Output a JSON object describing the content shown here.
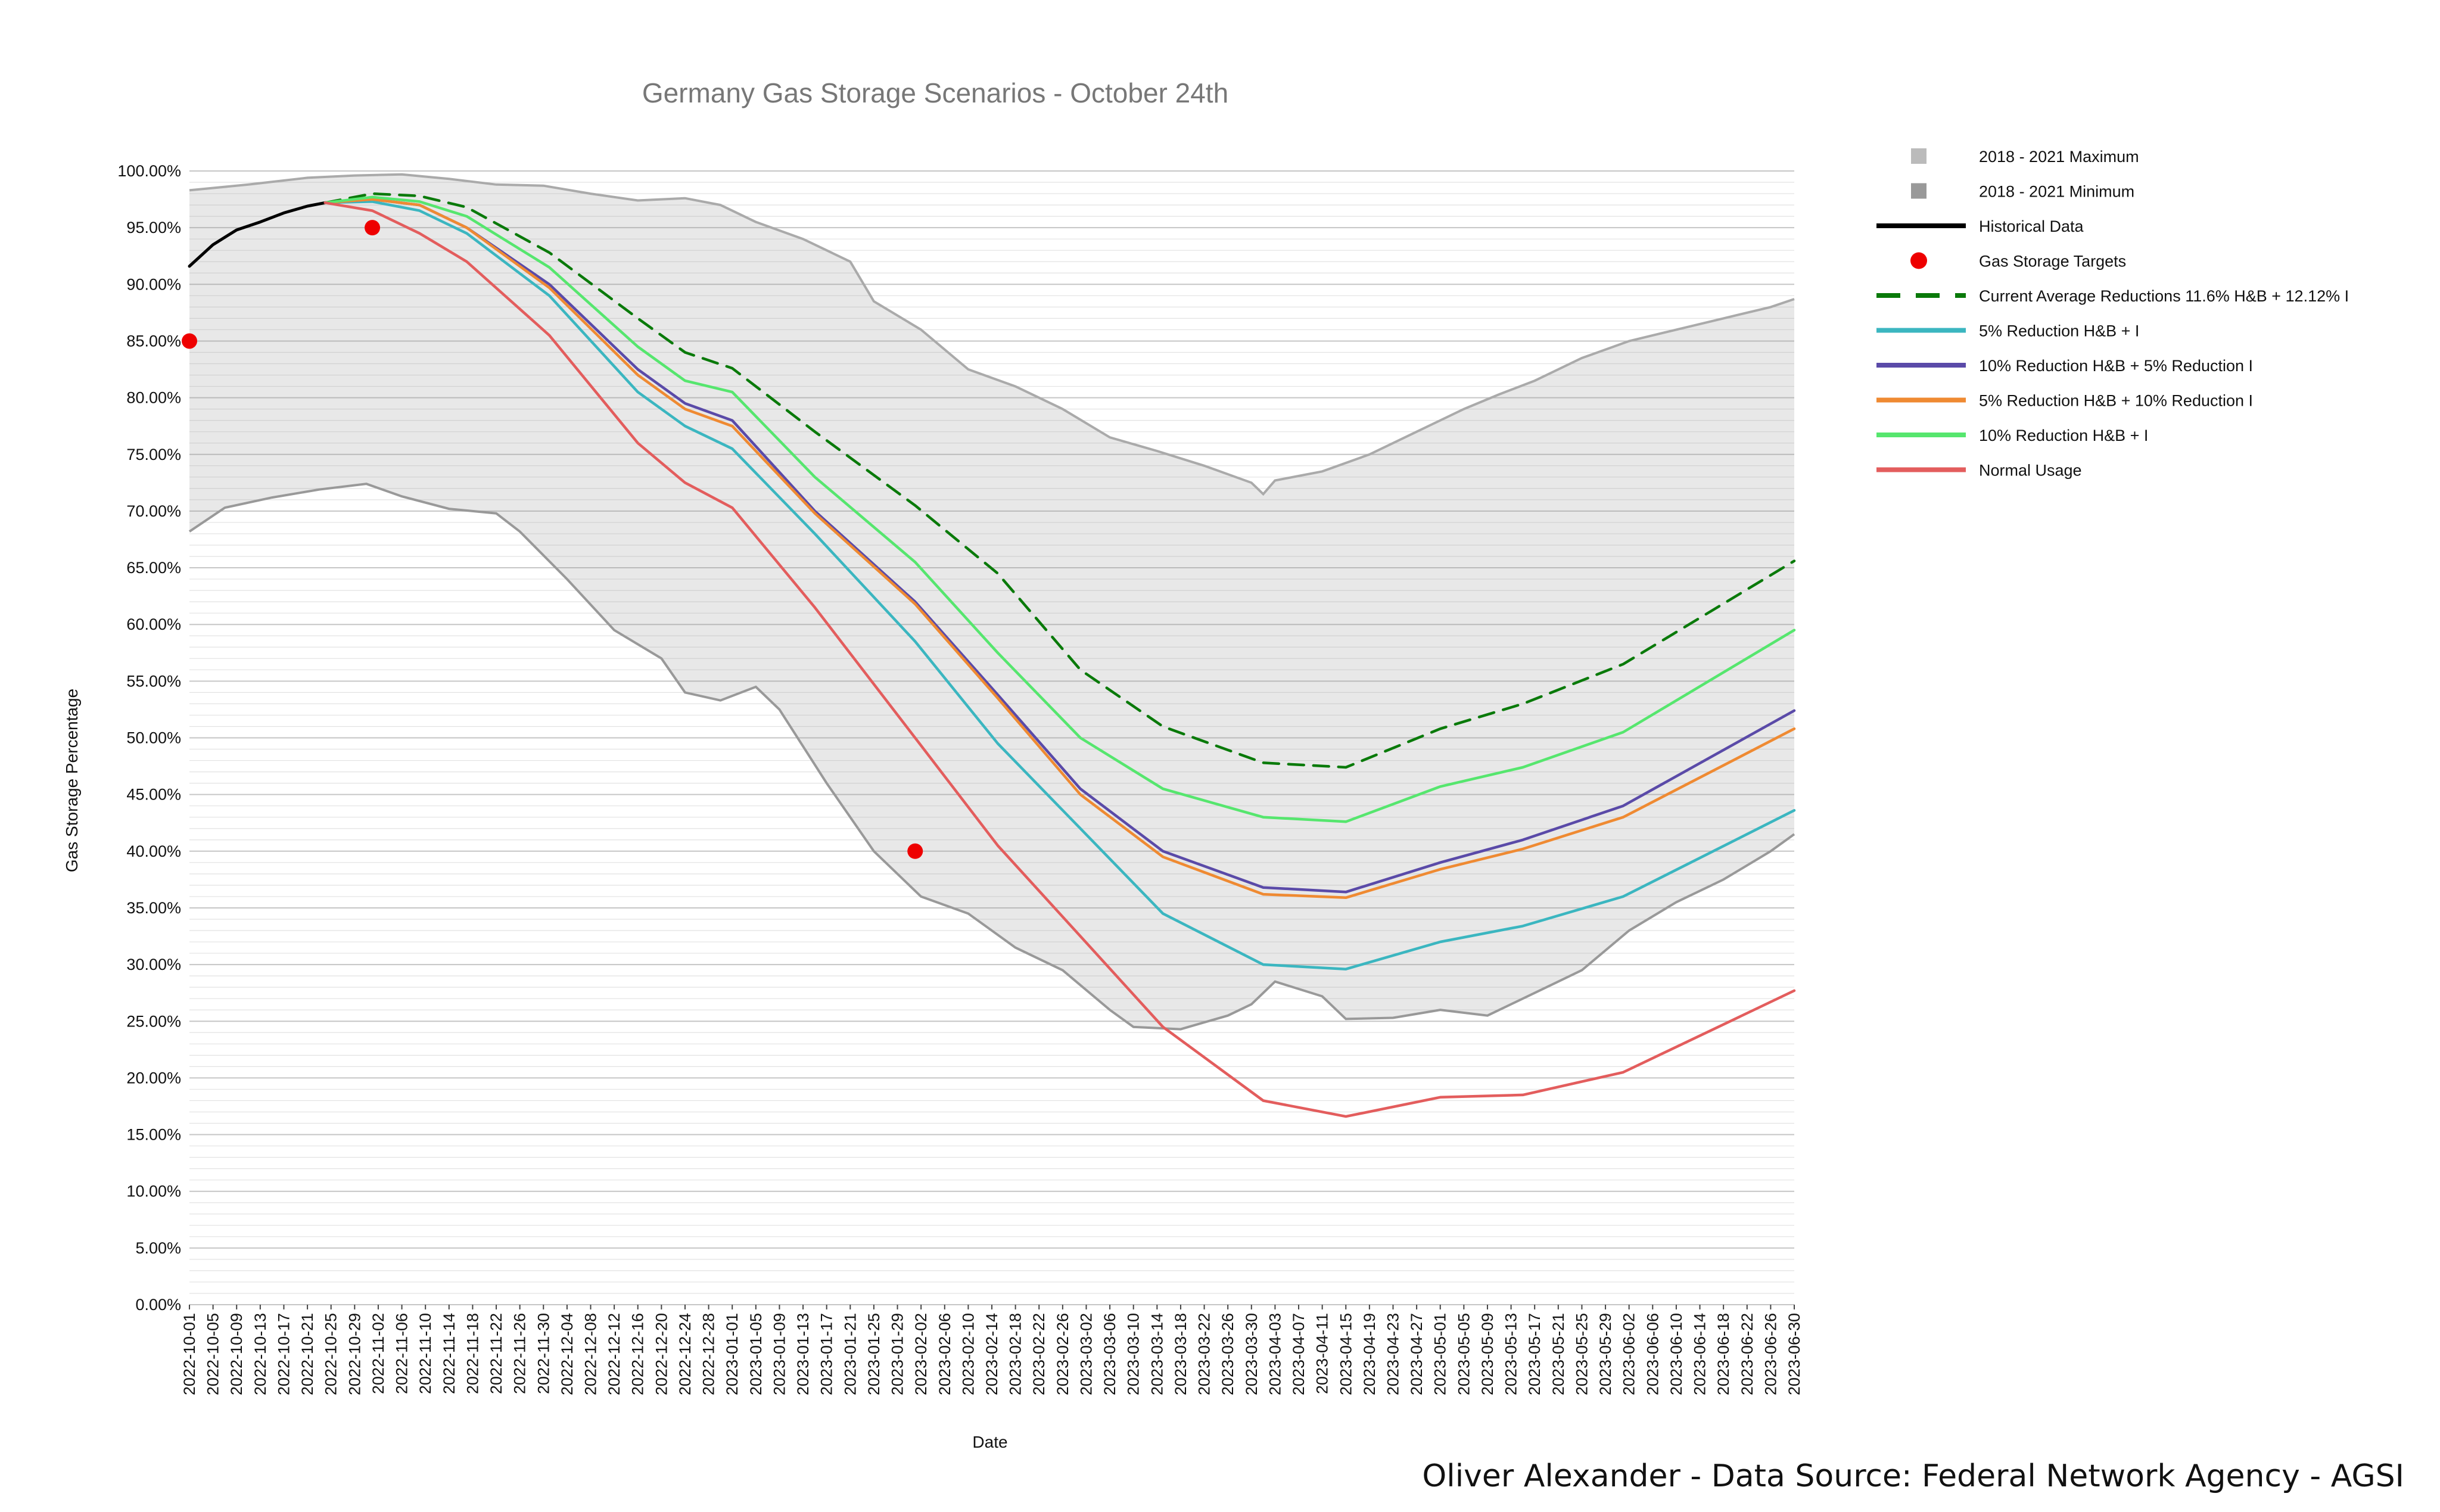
{
  "chart_data": {
    "type": "line",
    "title": "Germany Gas Storage Scenarios - October 24th",
    "xlabel": "Date",
    "ylabel": "Gas Storage Percentage",
    "ylim": [
      0,
      100
    ],
    "x_range": [
      "2022-10-01",
      "2023-06-30"
    ],
    "x_tick_start": "2022-10-01",
    "x_tick_step_days": 4,
    "y_ticks": [
      "0.00%",
      "5.00%",
      "10.00%",
      "15.00%",
      "20.00%",
      "25.00%",
      "30.00%",
      "35.00%",
      "40.00%",
      "45.00%",
      "50.00%",
      "55.00%",
      "60.00%",
      "65.00%",
      "70.00%",
      "75.00%",
      "80.00%",
      "85.00%",
      "90.00%",
      "95.00%",
      "100.00%"
    ],
    "grid": true,
    "legend_position": "right",
    "band": {
      "max_name": "2018 - 2021 Maximum",
      "min_name": "2018 - 2021 Minimum",
      "max": [
        [
          "2022-10-01",
          98.3
        ],
        [
          "2022-10-11",
          98.8
        ],
        [
          "2022-10-21",
          99.4
        ],
        [
          "2022-10-29",
          99.6
        ],
        [
          "2022-11-06",
          99.7
        ],
        [
          "2022-11-14",
          99.3
        ],
        [
          "2022-11-22",
          98.8
        ],
        [
          "2022-11-30",
          98.7
        ],
        [
          "2022-12-08",
          98.0
        ],
        [
          "2022-12-16",
          97.4
        ],
        [
          "2022-12-24",
          97.6
        ],
        [
          "2022-12-30",
          97.0
        ],
        [
          "2023-01-05",
          95.5
        ],
        [
          "2023-01-13",
          94.0
        ],
        [
          "2023-01-21",
          92.0
        ],
        [
          "2023-01-25",
          88.5
        ],
        [
          "2023-02-02",
          86.0
        ],
        [
          "2023-02-10",
          82.5
        ],
        [
          "2023-02-18",
          81.0
        ],
        [
          "2023-02-26",
          79.0
        ],
        [
          "2023-03-06",
          76.5
        ],
        [
          "2023-03-14",
          75.3
        ],
        [
          "2023-03-22",
          74.0
        ],
        [
          "2023-03-30",
          72.5
        ],
        [
          "2023-04-01",
          71.5
        ],
        [
          "2023-04-03",
          72.7
        ],
        [
          "2023-04-11",
          73.5
        ],
        [
          "2023-04-19",
          75.0
        ],
        [
          "2023-04-27",
          77.0
        ],
        [
          "2023-05-05",
          79.0
        ],
        [
          "2023-05-11",
          80.3
        ],
        [
          "2023-05-17",
          81.5
        ],
        [
          "2023-05-25",
          83.5
        ],
        [
          "2023-06-02",
          85.0
        ],
        [
          "2023-06-10",
          86.0
        ],
        [
          "2023-06-18",
          87.0
        ],
        [
          "2023-06-26",
          88.0
        ],
        [
          "2023-06-30",
          88.7
        ]
      ],
      "min": [
        [
          "2022-10-01",
          68.2
        ],
        [
          "2022-10-07",
          70.3
        ],
        [
          "2022-10-15",
          71.2
        ],
        [
          "2022-10-23",
          71.9
        ],
        [
          "2022-10-31",
          72.4
        ],
        [
          "2022-11-06",
          71.3
        ],
        [
          "2022-11-14",
          70.2
        ],
        [
          "2022-11-22",
          69.8
        ],
        [
          "2022-11-26",
          68.2
        ],
        [
          "2022-12-04",
          64.0
        ],
        [
          "2022-12-12",
          59.5
        ],
        [
          "2022-12-20",
          57.0
        ],
        [
          "2022-12-24",
          54.0
        ],
        [
          "2022-12-30",
          53.3
        ],
        [
          "2023-01-05",
          54.5
        ],
        [
          "2023-01-09",
          52.5
        ],
        [
          "2023-01-17",
          46.0
        ],
        [
          "2023-01-25",
          40.0
        ],
        [
          "2023-02-02",
          36.0
        ],
        [
          "2023-02-10",
          34.5
        ],
        [
          "2023-02-18",
          31.5
        ],
        [
          "2023-02-26",
          29.5
        ],
        [
          "2023-03-06",
          26.0
        ],
        [
          "2023-03-10",
          24.5
        ],
        [
          "2023-03-18",
          24.3
        ],
        [
          "2023-03-26",
          25.5
        ],
        [
          "2023-03-30",
          26.5
        ],
        [
          "2023-04-03",
          28.5
        ],
        [
          "2023-04-11",
          27.2
        ],
        [
          "2023-04-15",
          25.2
        ],
        [
          "2023-04-23",
          25.3
        ],
        [
          "2023-05-01",
          26.0
        ],
        [
          "2023-05-09",
          25.5
        ],
        [
          "2023-05-17",
          27.5
        ],
        [
          "2023-05-25",
          29.5
        ],
        [
          "2023-06-02",
          33.0
        ],
        [
          "2023-06-10",
          35.5
        ],
        [
          "2023-06-18",
          37.5
        ],
        [
          "2023-06-26",
          40.0
        ],
        [
          "2023-06-30",
          41.5
        ]
      ]
    },
    "series": [
      {
        "name": "Historical Data",
        "color": "#000000",
        "dash": false,
        "points": [
          [
            "2022-10-01",
            91.6
          ],
          [
            "2022-10-05",
            93.5
          ],
          [
            "2022-10-09",
            94.8
          ],
          [
            "2022-10-13",
            95.5
          ],
          [
            "2022-10-17",
            96.3
          ],
          [
            "2022-10-21",
            96.9
          ],
          [
            "2022-10-24",
            97.2
          ]
        ]
      },
      {
        "name": "Current Average Reductions 11.6% H&B + 12.12% I",
        "color": "#0a7a0a",
        "dash": true,
        "points": [
          [
            "2022-10-24",
            97.2
          ],
          [
            "2022-11-01",
            98.0
          ],
          [
            "2022-11-09",
            97.8
          ],
          [
            "2022-11-17",
            96.8
          ],
          [
            "2022-12-01",
            92.8
          ],
          [
            "2022-12-16",
            87.0
          ],
          [
            "2022-12-24",
            84.0
          ],
          [
            "2023-01-01",
            82.6
          ],
          [
            "2023-01-15",
            77.0
          ],
          [
            "2023-02-01",
            70.5
          ],
          [
            "2023-02-15",
            64.5
          ],
          [
            "2023-03-01",
            56.0
          ],
          [
            "2023-03-15",
            51.0
          ],
          [
            "2023-04-01",
            47.8
          ],
          [
            "2023-04-15",
            47.4
          ],
          [
            "2023-05-01",
            50.8
          ],
          [
            "2023-05-15",
            53.0
          ],
          [
            "2023-06-01",
            56.5
          ],
          [
            "2023-06-30",
            65.6
          ]
        ]
      },
      {
        "name": "5% Reduction H&B + I",
        "color": "#3bb6c0",
        "dash": false,
        "points": [
          [
            "2022-10-24",
            97.2
          ],
          [
            "2022-11-01",
            97.3
          ],
          [
            "2022-11-09",
            96.5
          ],
          [
            "2022-11-17",
            94.5
          ],
          [
            "2022-12-01",
            89.0
          ],
          [
            "2022-12-16",
            80.5
          ],
          [
            "2022-12-24",
            77.5
          ],
          [
            "2023-01-01",
            75.5
          ],
          [
            "2023-01-15",
            68.0
          ],
          [
            "2023-02-01",
            58.5
          ],
          [
            "2023-02-15",
            49.5
          ],
          [
            "2023-03-01",
            42.0
          ],
          [
            "2023-03-15",
            34.5
          ],
          [
            "2023-04-01",
            30.0
          ],
          [
            "2023-04-15",
            29.6
          ],
          [
            "2023-05-01",
            32.0
          ],
          [
            "2023-05-15",
            33.4
          ],
          [
            "2023-06-01",
            36.0
          ],
          [
            "2023-06-30",
            43.6
          ]
        ]
      },
      {
        "name": "10% Reduction H&B + 5% Reduction I",
        "color": "#5a4aa8",
        "dash": false,
        "points": [
          [
            "2022-10-24",
            97.2
          ],
          [
            "2022-11-01",
            97.5
          ],
          [
            "2022-11-09",
            97.0
          ],
          [
            "2022-11-17",
            95.0
          ],
          [
            "2022-12-01",
            90.0
          ],
          [
            "2022-12-16",
            82.5
          ],
          [
            "2022-12-24",
            79.5
          ],
          [
            "2023-01-01",
            78.0
          ],
          [
            "2023-01-15",
            70.0
          ],
          [
            "2023-02-01",
            62.0
          ],
          [
            "2023-02-15",
            53.8
          ],
          [
            "2023-03-01",
            45.5
          ],
          [
            "2023-03-15",
            40.0
          ],
          [
            "2023-04-01",
            36.8
          ],
          [
            "2023-04-15",
            36.4
          ],
          [
            "2023-05-01",
            39.0
          ],
          [
            "2023-05-15",
            41.0
          ],
          [
            "2023-06-01",
            44.0
          ],
          [
            "2023-06-30",
            52.4
          ]
        ]
      },
      {
        "name": "5% Reduction H&B + 10% Reduction I",
        "color": "#ef8a32",
        "dash": false,
        "points": [
          [
            "2022-10-24",
            97.2
          ],
          [
            "2022-11-01",
            97.5
          ],
          [
            "2022-11-09",
            97.0
          ],
          [
            "2022-11-17",
            95.0
          ],
          [
            "2022-12-01",
            89.7
          ],
          [
            "2022-12-16",
            82.0
          ],
          [
            "2022-12-24",
            79.0
          ],
          [
            "2023-01-01",
            77.5
          ],
          [
            "2023-01-15",
            69.8
          ],
          [
            "2023-02-01",
            61.8
          ],
          [
            "2023-02-15",
            53.5
          ],
          [
            "2023-03-01",
            45.0
          ],
          [
            "2023-03-15",
            39.5
          ],
          [
            "2023-04-01",
            36.2
          ],
          [
            "2023-04-15",
            35.9
          ],
          [
            "2023-05-01",
            38.4
          ],
          [
            "2023-05-15",
            40.2
          ],
          [
            "2023-06-01",
            43.0
          ],
          [
            "2023-06-30",
            50.8
          ]
        ]
      },
      {
        "name": "10% Reduction H&B + I",
        "color": "#56e66e",
        "dash": false,
        "points": [
          [
            "2022-10-24",
            97.2
          ],
          [
            "2022-11-01",
            97.7
          ],
          [
            "2022-11-09",
            97.3
          ],
          [
            "2022-11-17",
            96.0
          ],
          [
            "2022-12-01",
            91.5
          ],
          [
            "2022-12-16",
            84.5
          ],
          [
            "2022-12-24",
            81.5
          ],
          [
            "2023-01-01",
            80.5
          ],
          [
            "2023-01-15",
            73.0
          ],
          [
            "2023-02-01",
            65.5
          ],
          [
            "2023-02-15",
            57.5
          ],
          [
            "2023-03-01",
            50.0
          ],
          [
            "2023-03-15",
            45.5
          ],
          [
            "2023-04-01",
            43.0
          ],
          [
            "2023-04-15",
            42.6
          ],
          [
            "2023-05-01",
            45.7
          ],
          [
            "2023-05-15",
            47.4
          ],
          [
            "2023-06-01",
            50.5
          ],
          [
            "2023-06-30",
            59.5
          ]
        ]
      },
      {
        "name": "Normal Usage",
        "color": "#e35d5d",
        "dash": false,
        "points": [
          [
            "2022-10-24",
            97.2
          ],
          [
            "2022-11-01",
            96.5
          ],
          [
            "2022-11-09",
            94.5
          ],
          [
            "2022-11-17",
            92.0
          ],
          [
            "2022-12-01",
            85.5
          ],
          [
            "2022-12-16",
            76.0
          ],
          [
            "2022-12-24",
            72.5
          ],
          [
            "2023-01-01",
            70.3
          ],
          [
            "2023-01-15",
            61.5
          ],
          [
            "2023-02-01",
            50.0
          ],
          [
            "2023-02-15",
            40.5
          ],
          [
            "2023-03-01",
            32.5
          ],
          [
            "2023-03-15",
            24.5
          ],
          [
            "2023-04-01",
            18.0
          ],
          [
            "2023-04-15",
            16.6
          ],
          [
            "2023-05-01",
            18.3
          ],
          [
            "2023-05-15",
            18.5
          ],
          [
            "2023-06-01",
            20.5
          ],
          [
            "2023-06-30",
            27.7
          ]
        ]
      }
    ],
    "targets": {
      "name": "Gas Storage Targets",
      "color": "#ee0000",
      "points": [
        [
          "2022-10-01",
          85.0
        ],
        [
          "2022-11-01",
          95.0
        ],
        [
          "2023-02-01",
          40.0
        ]
      ]
    },
    "legend": {
      "entries": [
        {
          "label": "2018 - 2021 Maximum",
          "kind": "square",
          "color": "#bbbbbb"
        },
        {
          "label": "2018 - 2021 Minimum",
          "kind": "square",
          "color": "#999999"
        },
        {
          "label": "Historical Data",
          "kind": "line",
          "color": "#000000",
          "dash": false
        },
        {
          "label": "Gas Storage Targets",
          "kind": "dot",
          "color": "#ee0000"
        },
        {
          "label": "Current Average Reductions 11.6% H&B + 12.12% I",
          "kind": "line",
          "color": "#0a7a0a",
          "dash": true
        },
        {
          "label": "5% Reduction H&B + I",
          "kind": "line",
          "color": "#3bb6c0",
          "dash": false
        },
        {
          "label": "10% Reduction H&B + 5% Reduction I",
          "kind": "line",
          "color": "#5a4aa8",
          "dash": false
        },
        {
          "label": "5% Reduction H&B + 10% Reduction I",
          "kind": "line",
          "color": "#ef8a32",
          "dash": false
        },
        {
          "label": "10% Reduction H&B + I",
          "kind": "line",
          "color": "#56e66e",
          "dash": false
        },
        {
          "label": "Normal Usage",
          "kind": "line",
          "color": "#e35d5d",
          "dash": false
        }
      ]
    }
  },
  "footer": {
    "credit": "Oliver Alexander - Data Source: Federal Network Agency - AGSI"
  }
}
